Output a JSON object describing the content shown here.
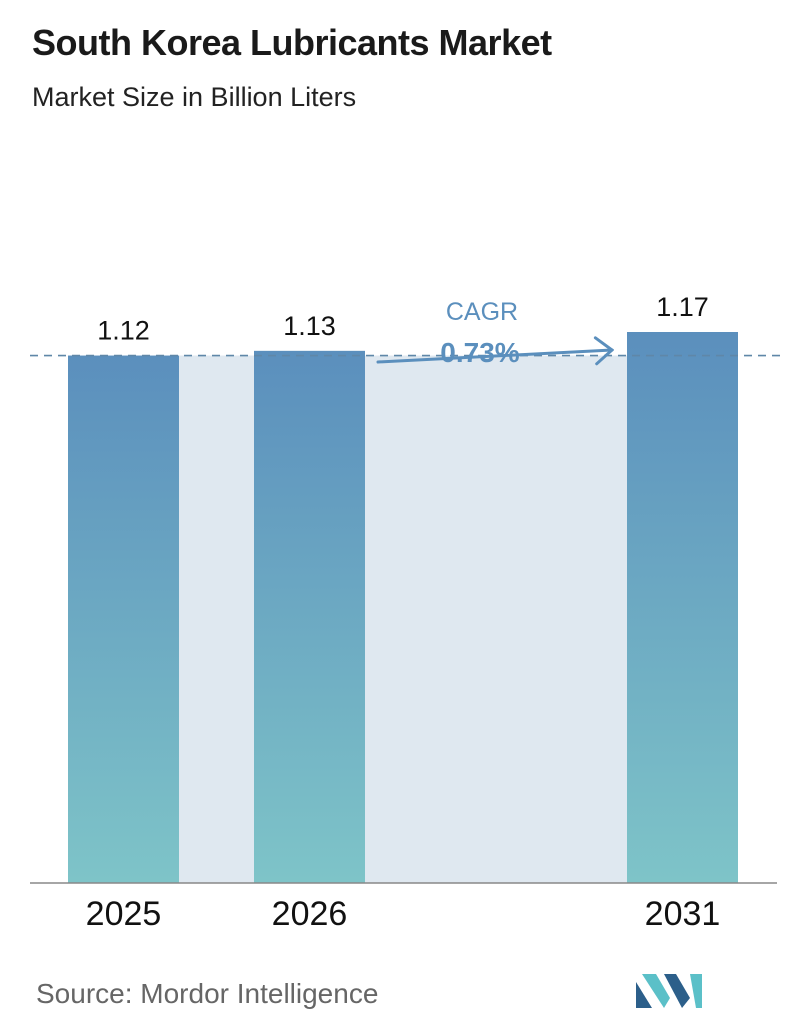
{
  "title": "South Korea Lubricants Market",
  "subtitle": "Market Size in Billion Liters",
  "source": "Source:  Mordor Intelligence",
  "cagr": {
    "label": "CAGR",
    "value": "0.73%"
  },
  "colors": {
    "bar_top": "#5b8fbd",
    "bar_bottom": "#7ec4c8",
    "band": "#dfe8f0",
    "dash": "#5f87a8",
    "cagr_text": "#5b8fbd",
    "logo_dark": "#2c5f8a",
    "logo_light": "#5bc0c8"
  },
  "chart_data": {
    "type": "bar",
    "categories": [
      "2025",
      "2026",
      "2031"
    ],
    "values": [
      1.12,
      1.13,
      1.17
    ],
    "value_labels": [
      "1.12",
      "1.13",
      "1.17"
    ],
    "reference_line": 1.12
  }
}
